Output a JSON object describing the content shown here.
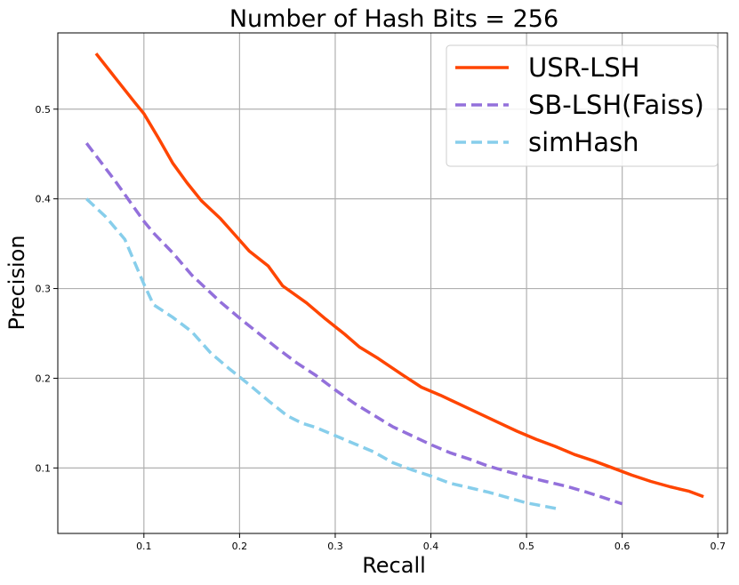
{
  "chart_data": {
    "type": "line",
    "title": "Number of Hash Bits = 256",
    "xlabel": "Recall",
    "ylabel": "Precision",
    "xlim": [
      0.01,
      0.71
    ],
    "ylim": [
      0.027,
      0.585
    ],
    "xticks": [
      0.1,
      0.2,
      0.3,
      0.4,
      0.5,
      0.6,
      0.7
    ],
    "xtick_labels": [
      "0.1",
      "0.2",
      "0.3",
      "0.4",
      "0.5",
      "0.6",
      "0.7"
    ],
    "yticks": [
      0.1,
      0.2,
      0.3,
      0.4,
      0.5
    ],
    "ytick_labels": [
      "0.1",
      "0.2",
      "0.3",
      "0.4",
      "0.5"
    ],
    "grid": true,
    "legend_position": "top-right",
    "series": [
      {
        "name": "USR-LSH",
        "color": "#ff4500",
        "style": "solid",
        "points": [
          [
            0.05,
            0.562
          ],
          [
            0.07,
            0.535
          ],
          [
            0.09,
            0.508
          ],
          [
            0.1,
            0.495
          ],
          [
            0.115,
            0.468
          ],
          [
            0.13,
            0.44
          ],
          [
            0.145,
            0.418
          ],
          [
            0.16,
            0.398
          ],
          [
            0.18,
            0.378
          ],
          [
            0.195,
            0.36
          ],
          [
            0.21,
            0.342
          ],
          [
            0.23,
            0.325
          ],
          [
            0.245,
            0.303
          ],
          [
            0.27,
            0.284
          ],
          [
            0.29,
            0.266
          ],
          [
            0.31,
            0.249
          ],
          [
            0.325,
            0.235
          ],
          [
            0.345,
            0.222
          ],
          [
            0.37,
            0.204
          ],
          [
            0.39,
            0.19
          ],
          [
            0.41,
            0.181
          ],
          [
            0.43,
            0.171
          ],
          [
            0.45,
            0.161
          ],
          [
            0.47,
            0.151
          ],
          [
            0.49,
            0.141
          ],
          [
            0.51,
            0.132
          ],
          [
            0.53,
            0.124
          ],
          [
            0.55,
            0.115
          ],
          [
            0.57,
            0.108
          ],
          [
            0.59,
            0.1
          ],
          [
            0.61,
            0.092
          ],
          [
            0.63,
            0.085
          ],
          [
            0.65,
            0.079
          ],
          [
            0.67,
            0.074
          ],
          [
            0.685,
            0.068
          ]
        ]
      },
      {
        "name": "SB-LSH(Faiss)",
        "color": "#9370db",
        "style": "dashed",
        "points": [
          [
            0.04,
            0.462
          ],
          [
            0.07,
            0.42
          ],
          [
            0.1,
            0.375
          ],
          [
            0.11,
            0.362
          ],
          [
            0.13,
            0.34
          ],
          [
            0.15,
            0.315
          ],
          [
            0.16,
            0.305
          ],
          [
            0.18,
            0.285
          ],
          [
            0.2,
            0.267
          ],
          [
            0.22,
            0.25
          ],
          [
            0.24,
            0.233
          ],
          [
            0.26,
            0.217
          ],
          [
            0.28,
            0.203
          ],
          [
            0.3,
            0.187
          ],
          [
            0.32,
            0.172
          ],
          [
            0.34,
            0.159
          ],
          [
            0.36,
            0.146
          ],
          [
            0.38,
            0.136
          ],
          [
            0.4,
            0.126
          ],
          [
            0.42,
            0.117
          ],
          [
            0.44,
            0.11
          ],
          [
            0.46,
            0.102
          ],
          [
            0.48,
            0.096
          ],
          [
            0.5,
            0.09
          ],
          [
            0.52,
            0.085
          ],
          [
            0.54,
            0.08
          ],
          [
            0.56,
            0.074
          ],
          [
            0.58,
            0.067
          ],
          [
            0.6,
            0.06
          ]
        ]
      },
      {
        "name": "simHash",
        "color": "#87ceeb",
        "style": "dashed",
        "points": [
          [
            0.04,
            0.4
          ],
          [
            0.06,
            0.38
          ],
          [
            0.08,
            0.355
          ],
          [
            0.1,
            0.305
          ],
          [
            0.11,
            0.282
          ],
          [
            0.13,
            0.268
          ],
          [
            0.15,
            0.252
          ],
          [
            0.17,
            0.228
          ],
          [
            0.19,
            0.21
          ],
          [
            0.21,
            0.193
          ],
          [
            0.23,
            0.175
          ],
          [
            0.25,
            0.158
          ],
          [
            0.265,
            0.15
          ],
          [
            0.28,
            0.145
          ],
          [
            0.3,
            0.136
          ],
          [
            0.32,
            0.127
          ],
          [
            0.34,
            0.118
          ],
          [
            0.36,
            0.106
          ],
          [
            0.38,
            0.098
          ],
          [
            0.4,
            0.091
          ],
          [
            0.42,
            0.083
          ],
          [
            0.44,
            0.078
          ],
          [
            0.46,
            0.073
          ],
          [
            0.48,
            0.067
          ],
          [
            0.5,
            0.061
          ],
          [
            0.52,
            0.057
          ],
          [
            0.535,
            0.054
          ]
        ]
      }
    ]
  }
}
